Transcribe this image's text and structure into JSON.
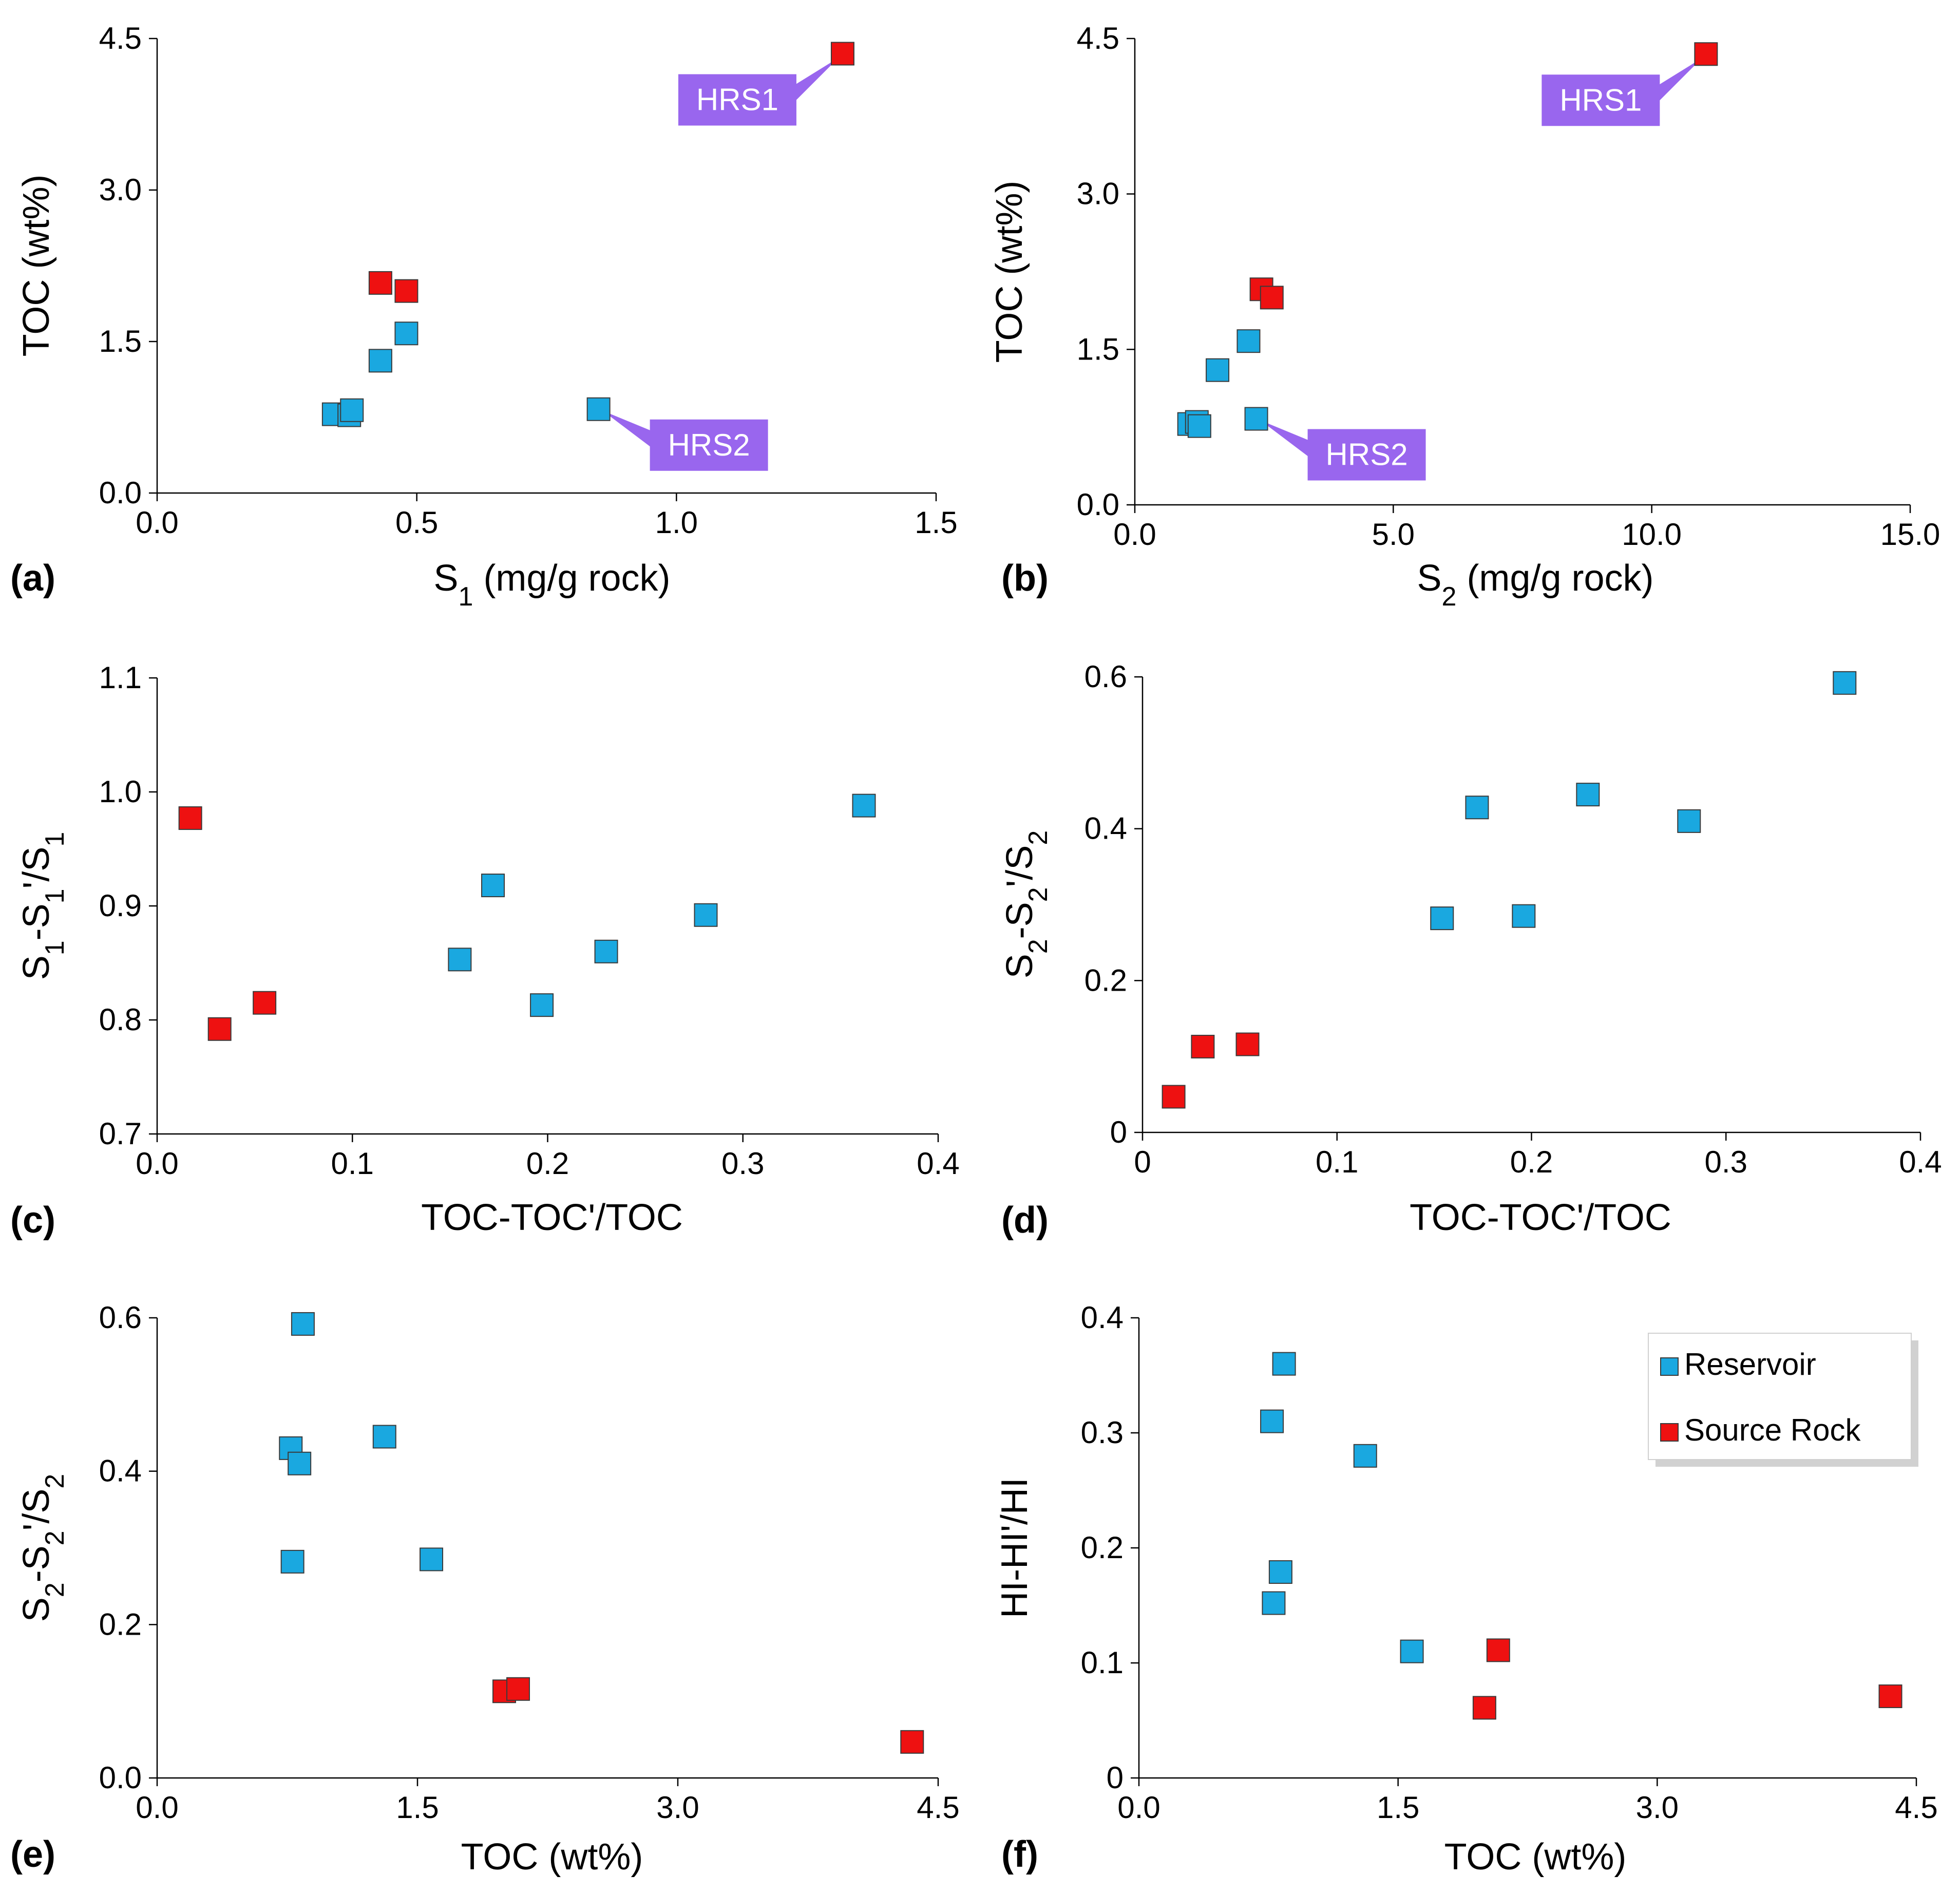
{
  "colors": {
    "reservoir": "#1aa8e0",
    "source_rock": "#ee1111",
    "callout": "#9966ee",
    "callout_text": "#ffffff"
  },
  "legend": {
    "items": [
      {
        "label": "Reservoir",
        "color": "#1aa8e0"
      },
      {
        "label": "Source Rock",
        "color": "#ee1111"
      }
    ]
  },
  "chart_data": [
    {
      "panel": "(a)",
      "type": "scatter",
      "xlabel": {
        "text": "S",
        "sub": "1",
        "rest": " (mg/g rock)"
      },
      "ylabel": "TOC (wt%)",
      "xlim": [
        0,
        1.5
      ],
      "ylim": [
        0,
        4.5
      ],
      "xticks": [
        "0.0",
        "0.5",
        "1.0",
        "1.5"
      ],
      "yticks": [
        "0.0",
        "1.5",
        "3.0",
        "4.5"
      ],
      "series": [
        {
          "name": "Reservoir",
          "points": [
            [
              0.34,
              0.78
            ],
            [
              0.37,
              0.77
            ],
            [
              0.375,
              0.82
            ],
            [
              0.43,
              1.31
            ],
            [
              0.48,
              1.58
            ],
            [
              0.85,
              0.83
            ]
          ]
        },
        {
          "name": "Source Rock",
          "points": [
            [
              0.43,
              2.08
            ],
            [
              0.48,
              2.0
            ],
            [
              1.32,
              4.35
            ]
          ]
        }
      ],
      "annotations": [
        {
          "text": "HRS1",
          "point": [
            1.32,
            4.35
          ]
        },
        {
          "text": "HRS2",
          "point": [
            0.85,
            0.83
          ]
        }
      ]
    },
    {
      "panel": "(b)",
      "type": "scatter",
      "xlabel": {
        "text": "S",
        "sub": "2",
        "rest": " (mg/g rock)"
      },
      "ylabel": "TOC (wt%)",
      "xlim": [
        0,
        15
      ],
      "ylim": [
        0,
        4.5
      ],
      "xticks": [
        "0.0",
        "5.0",
        "10.0",
        "15.0"
      ],
      "yticks": [
        "0.0",
        "1.5",
        "3.0",
        "4.5"
      ],
      "series": [
        {
          "name": "Reservoir",
          "points": [
            [
              1.05,
              0.78
            ],
            [
              1.2,
              0.8
            ],
            [
              1.25,
              0.76
            ],
            [
              1.6,
              1.3
            ],
            [
              2.2,
              1.58
            ],
            [
              2.35,
              0.83
            ]
          ]
        },
        {
          "name": "Source Rock",
          "points": [
            [
              2.45,
              2.08
            ],
            [
              2.65,
              2.0
            ],
            [
              11.05,
              4.35
            ]
          ]
        }
      ],
      "annotations": [
        {
          "text": "HRS1",
          "point": [
            11.05,
            4.35
          ]
        },
        {
          "text": "HRS2",
          "point": [
            2.35,
            0.83
          ]
        }
      ]
    },
    {
      "panel": "(c)",
      "type": "scatter",
      "xlabel": {
        "text": "TOC-TOC'/TOC",
        "sub": "",
        "rest": ""
      },
      "ylabel": "S1-S1'/S1",
      "xlim": [
        0,
        0.4
      ],
      "ylim": [
        0.7,
        1.1
      ],
      "xticks": [
        "0.0",
        "0.1",
        "0.2",
        "0.3",
        "0.4"
      ],
      "yticks": [
        "0.7",
        "0.8",
        "0.9",
        "1.0",
        "1.1"
      ],
      "series": [
        {
          "name": "Reservoir",
          "points": [
            [
              0.155,
              0.853
            ],
            [
              0.172,
              0.918
            ],
            [
              0.197,
              0.813
            ],
            [
              0.23,
              0.86
            ],
            [
              0.281,
              0.892
            ],
            [
              0.362,
              0.988
            ]
          ]
        },
        {
          "name": "Source Rock",
          "points": [
            [
              0.017,
              0.977
            ],
            [
              0.032,
              0.792
            ],
            [
              0.055,
              0.815
            ]
          ]
        }
      ]
    },
    {
      "panel": "(d)",
      "type": "scatter",
      "xlabel": {
        "text": "TOC-TOC'/TOC",
        "sub": "",
        "rest": ""
      },
      "ylabel": "S2-S2'/S2",
      "xlim": [
        0,
        0.4
      ],
      "ylim": [
        0,
        0.6
      ],
      "xticks": [
        "0",
        "0.1",
        "0.2",
        "0.3",
        "0.4"
      ],
      "yticks": [
        "0",
        "0.2",
        "0.4",
        "0.6"
      ],
      "series": [
        {
          "name": "Reservoir",
          "points": [
            [
              0.154,
              0.282
            ],
            [
              0.172,
              0.428
            ],
            [
              0.196,
              0.285
            ],
            [
              0.229,
              0.445
            ],
            [
              0.281,
              0.41
            ],
            [
              0.361,
              0.592
            ]
          ]
        },
        {
          "name": "Source Rock",
          "points": [
            [
              0.016,
              0.047
            ],
            [
              0.031,
              0.113
            ],
            [
              0.054,
              0.116
            ]
          ]
        }
      ]
    },
    {
      "panel": "(e)",
      "type": "scatter",
      "xlabel": {
        "text": "TOC (wt%)",
        "sub": "",
        "rest": ""
      },
      "ylabel": "S2-S2'/S2",
      "xlim": [
        0,
        4.5
      ],
      "ylim": [
        0,
        0.6
      ],
      "xticks": [
        "0.0",
        "1.5",
        "3.0",
        "4.5"
      ],
      "yticks": [
        "0.0",
        "0.2",
        "0.4",
        "0.6"
      ],
      "series": [
        {
          "name": "Reservoir",
          "points": [
            [
              0.77,
              0.43
            ],
            [
              0.78,
              0.282
            ],
            [
              0.82,
              0.41
            ],
            [
              0.84,
              0.592
            ],
            [
              1.31,
              0.445
            ],
            [
              1.58,
              0.285
            ]
          ]
        },
        {
          "name": "Source Rock",
          "points": [
            [
              2.0,
              0.113
            ],
            [
              2.08,
              0.116
            ],
            [
              4.35,
              0.047
            ]
          ]
        }
      ]
    },
    {
      "panel": "(f)",
      "type": "scatter",
      "xlabel": {
        "text": "TOC (wt%)",
        "sub": "",
        "rest": ""
      },
      "ylabel": "HI-HI'/HI",
      "xlim": [
        0,
        4.5
      ],
      "ylim": [
        0,
        0.4
      ],
      "xticks": [
        "0.0",
        "1.5",
        "3.0",
        "4.5"
      ],
      "yticks": [
        "0",
        "0.1",
        "0.2",
        "0.3",
        "0.4"
      ],
      "series": [
        {
          "name": "Reservoir",
          "points": [
            [
              0.77,
              0.31
            ],
            [
              0.78,
              0.152
            ],
            [
              0.82,
              0.179
            ],
            [
              0.84,
              0.36
            ],
            [
              1.31,
              0.28
            ],
            [
              1.58,
              0.11
            ]
          ]
        },
        {
          "name": "Source Rock",
          "points": [
            [
              2.0,
              0.061
            ],
            [
              2.08,
              0.111
            ],
            [
              4.35,
              0.071
            ]
          ]
        }
      ],
      "legend_position": "top-right"
    }
  ]
}
